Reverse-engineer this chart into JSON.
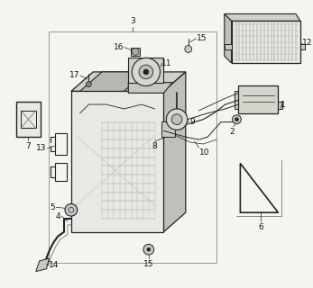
{
  "background_color": "#f5f5f0",
  "fig_width": 3.47,
  "fig_height": 3.2,
  "dpi": 100,
  "label_fontsize": 6.5,
  "label_color": "#111111",
  "line_color": "#222222",
  "gray_fill": "#c8c8c8",
  "light_fill": "#e8e8e4",
  "mid_fill": "#b0b0a8",
  "dark_fill": "#888880"
}
